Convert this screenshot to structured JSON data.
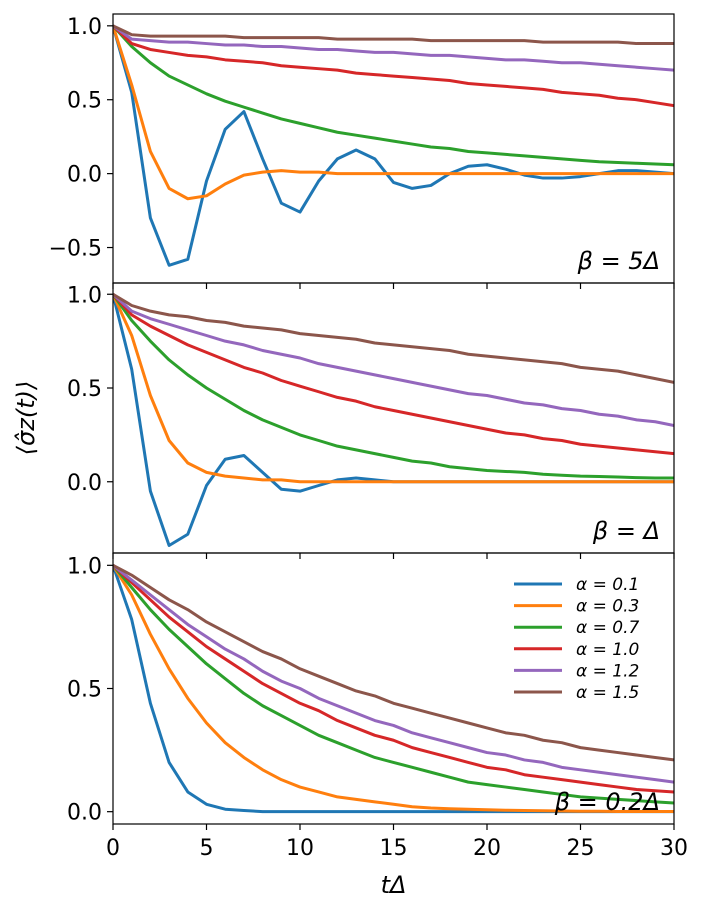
{
  "chart_data": {
    "type": "line",
    "layout": "stacked panels sharing x axis",
    "xlabel": "tΔ",
    "ylabel": "⟨σ̂z(t)⟩",
    "xlim": [
      0,
      30
    ],
    "xticks": [
      0,
      5,
      10,
      15,
      20,
      25,
      30
    ],
    "xtick_labels": [
      "0",
      "5",
      "10",
      "15",
      "20",
      "25",
      "30"
    ],
    "legend_location": "top-right of bottom panel",
    "series_styles": [
      {
        "name": "α = 0.1",
        "color": "#1f77b4"
      },
      {
        "name": "α = 0.3",
        "color": "#ff7f0e"
      },
      {
        "name": "α = 0.7",
        "color": "#2ca02c"
      },
      {
        "name": "α = 1.0",
        "color": "#d62728"
      },
      {
        "name": "α = 1.2",
        "color": "#9467bd"
      },
      {
        "name": "α = 1.5",
        "color": "#8c564b"
      }
    ],
    "panels": [
      {
        "annotation": "β = 5Δ",
        "ylim": [
          -0.74,
          1.08
        ],
        "yticks": [
          -0.5,
          0.0,
          0.5,
          1.0
        ],
        "ytick_labels": [
          "−0.5",
          "0.0",
          "0.5",
          "1.0"
        ],
        "x": [
          0,
          1,
          2,
          3,
          4,
          5,
          6,
          7,
          8,
          9,
          10,
          11,
          12,
          13,
          14,
          15,
          16,
          17,
          18,
          19,
          20,
          21,
          22,
          23,
          24,
          25,
          26,
          27,
          28,
          29,
          30
        ],
        "series": [
          {
            "name": "α = 0.1",
            "values": [
              1.0,
              0.55,
              -0.3,
              -0.62,
              -0.58,
              -0.05,
              0.3,
              0.42,
              0.1,
              -0.2,
              -0.26,
              -0.05,
              0.1,
              0.16,
              0.1,
              -0.06,
              -0.1,
              -0.08,
              0.0,
              0.05,
              0.06,
              0.03,
              -0.01,
              -0.03,
              -0.03,
              -0.02,
              0.0,
              0.02,
              0.02,
              0.01,
              0.0
            ]
          },
          {
            "name": "α = 0.3",
            "values": [
              1.0,
              0.6,
              0.15,
              -0.1,
              -0.17,
              -0.15,
              -0.07,
              -0.01,
              0.01,
              0.02,
              0.01,
              0.01,
              0.0,
              0.0,
              0.0,
              0.0,
              0.0,
              0.0,
              0.0,
              0.0,
              0.0,
              0.0,
              0.0,
              0.0,
              0.0,
              0.0,
              0.0,
              0.0,
              0.0,
              0.0,
              0.0
            ]
          },
          {
            "name": "α = 0.7",
            "values": [
              1.0,
              0.86,
              0.75,
              0.66,
              0.6,
              0.54,
              0.49,
              0.45,
              0.41,
              0.37,
              0.34,
              0.31,
              0.28,
              0.26,
              0.24,
              0.22,
              0.2,
              0.18,
              0.17,
              0.15,
              0.14,
              0.13,
              0.12,
              0.11,
              0.1,
              0.09,
              0.08,
              0.075,
              0.07,
              0.065,
              0.06
            ]
          },
          {
            "name": "α = 1.0",
            "values": [
              1.0,
              0.88,
              0.84,
              0.82,
              0.8,
              0.79,
              0.77,
              0.76,
              0.75,
              0.73,
              0.72,
              0.71,
              0.7,
              0.68,
              0.67,
              0.66,
              0.65,
              0.64,
              0.63,
              0.61,
              0.6,
              0.59,
              0.58,
              0.57,
              0.55,
              0.54,
              0.53,
              0.51,
              0.5,
              0.48,
              0.46
            ]
          },
          {
            "name": "α = 1.2",
            "values": [
              1.0,
              0.91,
              0.9,
              0.89,
              0.89,
              0.88,
              0.87,
              0.87,
              0.86,
              0.86,
              0.85,
              0.84,
              0.84,
              0.83,
              0.82,
              0.82,
              0.81,
              0.8,
              0.8,
              0.79,
              0.78,
              0.77,
              0.77,
              0.76,
              0.75,
              0.75,
              0.74,
              0.73,
              0.72,
              0.71,
              0.7
            ]
          },
          {
            "name": "α = 1.5",
            "values": [
              1.0,
              0.94,
              0.93,
              0.93,
              0.93,
              0.93,
              0.93,
              0.92,
              0.92,
              0.92,
              0.92,
              0.92,
              0.91,
              0.91,
              0.91,
              0.91,
              0.91,
              0.9,
              0.9,
              0.9,
              0.9,
              0.9,
              0.9,
              0.89,
              0.89,
              0.89,
              0.89,
              0.89,
              0.88,
              0.88,
              0.88
            ]
          }
        ]
      },
      {
        "annotation": "β = Δ",
        "ylim": [
          -0.38,
          1.06
        ],
        "yticks": [
          0.0,
          0.5,
          1.0
        ],
        "ytick_labels": [
          "0.0",
          "0.5",
          "1.0"
        ],
        "x": [
          0,
          1,
          2,
          3,
          4,
          5,
          6,
          7,
          8,
          9,
          10,
          11,
          12,
          13,
          14,
          15,
          16,
          17,
          18,
          19,
          20,
          21,
          22,
          23,
          24,
          25,
          26,
          27,
          28,
          29,
          30
        ],
        "series": [
          {
            "name": "α = 0.1",
            "values": [
              1.0,
              0.6,
              -0.05,
              -0.34,
              -0.28,
              -0.02,
              0.12,
              0.14,
              0.05,
              -0.04,
              -0.05,
              -0.02,
              0.01,
              0.02,
              0.01,
              0.0,
              0.0,
              0.0,
              0.0,
              0.0,
              0.0,
              0.0,
              0.0,
              0.0,
              0.0,
              0.0,
              0.0,
              0.0,
              0.0,
              0.0,
              0.0
            ]
          },
          {
            "name": "α = 0.3",
            "values": [
              1.0,
              0.78,
              0.46,
              0.22,
              0.1,
              0.05,
              0.03,
              0.02,
              0.01,
              0.01,
              0.0,
              0.0,
              0.0,
              0.0,
              0.0,
              0.0,
              0.0,
              0.0,
              0.0,
              0.0,
              0.0,
              0.0,
              0.0,
              0.0,
              0.0,
              0.0,
              0.0,
              0.0,
              0.0,
              0.0,
              0.0
            ]
          },
          {
            "name": "α = 0.7",
            "values": [
              1.0,
              0.86,
              0.75,
              0.65,
              0.57,
              0.5,
              0.44,
              0.38,
              0.33,
              0.29,
              0.25,
              0.22,
              0.19,
              0.17,
              0.15,
              0.13,
              0.11,
              0.1,
              0.08,
              0.07,
              0.06,
              0.055,
              0.05,
              0.04,
              0.035,
              0.03,
              0.028,
              0.025,
              0.022,
              0.02,
              0.02
            ]
          },
          {
            "name": "α = 1.0",
            "values": [
              1.0,
              0.89,
              0.83,
              0.78,
              0.73,
              0.69,
              0.65,
              0.61,
              0.58,
              0.54,
              0.51,
              0.48,
              0.45,
              0.43,
              0.4,
              0.38,
              0.36,
              0.34,
              0.32,
              0.3,
              0.28,
              0.26,
              0.25,
              0.23,
              0.22,
              0.2,
              0.19,
              0.18,
              0.17,
              0.16,
              0.15
            ]
          },
          {
            "name": "α = 1.2",
            "values": [
              1.0,
              0.91,
              0.87,
              0.84,
              0.81,
              0.78,
              0.75,
              0.73,
              0.7,
              0.68,
              0.66,
              0.63,
              0.61,
              0.59,
              0.57,
              0.55,
              0.53,
              0.51,
              0.49,
              0.47,
              0.46,
              0.44,
              0.42,
              0.41,
              0.39,
              0.38,
              0.36,
              0.35,
              0.33,
              0.32,
              0.3
            ]
          },
          {
            "name": "α = 1.5",
            "values": [
              1.0,
              0.94,
              0.91,
              0.89,
              0.88,
              0.86,
              0.85,
              0.83,
              0.82,
              0.81,
              0.79,
              0.78,
              0.77,
              0.76,
              0.74,
              0.73,
              0.72,
              0.71,
              0.7,
              0.68,
              0.67,
              0.66,
              0.65,
              0.64,
              0.63,
              0.61,
              0.6,
              0.59,
              0.57,
              0.55,
              0.53
            ]
          }
        ]
      },
      {
        "annotation": "β = 0.2Δ",
        "ylim": [
          -0.05,
          1.05
        ],
        "yticks": [
          0.0,
          0.5,
          1.0
        ],
        "ytick_labels": [
          "0.0",
          "0.5",
          "1.0"
        ],
        "x": [
          0,
          1,
          2,
          3,
          4,
          5,
          6,
          7,
          8,
          9,
          10,
          11,
          12,
          13,
          14,
          15,
          16,
          17,
          18,
          19,
          20,
          21,
          22,
          23,
          24,
          25,
          26,
          27,
          28,
          29,
          30
        ],
        "series": [
          {
            "name": "α = 0.1",
            "values": [
              1.0,
              0.78,
              0.44,
              0.2,
              0.08,
              0.03,
              0.01,
              0.005,
              0.0,
              0.0,
              0.0,
              0.0,
              0.0,
              0.0,
              0.0,
              0.0,
              0.0,
              0.0,
              0.0,
              0.0,
              0.0,
              0.0,
              0.0,
              0.0,
              0.0,
              0.0,
              0.0,
              0.0,
              0.0,
              0.0,
              0.0
            ]
          },
          {
            "name": "α = 0.3",
            "values": [
              1.0,
              0.88,
              0.72,
              0.58,
              0.46,
              0.36,
              0.28,
              0.22,
              0.17,
              0.13,
              0.1,
              0.08,
              0.06,
              0.05,
              0.04,
              0.03,
              0.02,
              0.015,
              0.012,
              0.01,
              0.008,
              0.006,
              0.005,
              0.004,
              0.003,
              0.002,
              0.002,
              0.001,
              0.001,
              0.001,
              0.001
            ]
          },
          {
            "name": "α = 0.7",
            "values": [
              1.0,
              0.91,
              0.82,
              0.74,
              0.67,
              0.6,
              0.54,
              0.48,
              0.43,
              0.39,
              0.35,
              0.31,
              0.28,
              0.25,
              0.22,
              0.2,
              0.18,
              0.16,
              0.14,
              0.12,
              0.11,
              0.1,
              0.09,
              0.08,
              0.07,
              0.06,
              0.055,
              0.05,
              0.045,
              0.04,
              0.035
            ]
          },
          {
            "name": "α = 1.0",
            "values": [
              1.0,
              0.93,
              0.86,
              0.79,
              0.73,
              0.67,
              0.62,
              0.57,
              0.52,
              0.48,
              0.44,
              0.41,
              0.37,
              0.34,
              0.31,
              0.29,
              0.26,
              0.24,
              0.22,
              0.2,
              0.18,
              0.17,
              0.15,
              0.14,
              0.13,
              0.12,
              0.11,
              0.1,
              0.09,
              0.085,
              0.08
            ]
          },
          {
            "name": "α = 1.2",
            "values": [
              1.0,
              0.94,
              0.88,
              0.82,
              0.76,
              0.71,
              0.66,
              0.62,
              0.57,
              0.53,
              0.5,
              0.46,
              0.43,
              0.4,
              0.37,
              0.35,
              0.32,
              0.3,
              0.28,
              0.26,
              0.24,
              0.23,
              0.21,
              0.2,
              0.18,
              0.17,
              0.16,
              0.15,
              0.14,
              0.13,
              0.12
            ]
          },
          {
            "name": "α = 1.5",
            "values": [
              1.0,
              0.96,
              0.91,
              0.86,
              0.82,
              0.77,
              0.73,
              0.69,
              0.65,
              0.62,
              0.58,
              0.55,
              0.52,
              0.49,
              0.47,
              0.44,
              0.42,
              0.4,
              0.38,
              0.36,
              0.34,
              0.32,
              0.31,
              0.29,
              0.28,
              0.26,
              0.25,
              0.24,
              0.23,
              0.22,
              0.21
            ]
          }
        ]
      }
    ]
  }
}
